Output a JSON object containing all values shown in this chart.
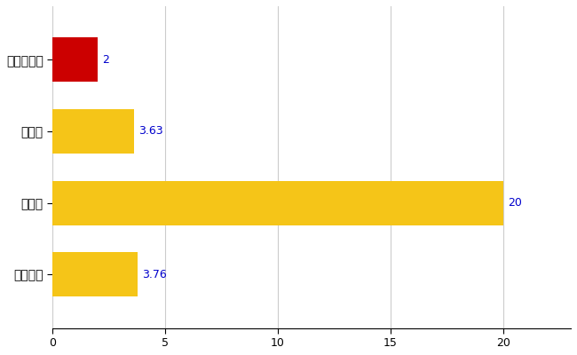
{
  "categories": [
    "みなかみ町",
    "県平均",
    "県最大",
    "全国平均"
  ],
  "values": [
    2,
    3.63,
    20,
    3.76
  ],
  "bar_colors": [
    "#cc0000",
    "#f5c518",
    "#f5c518",
    "#f5c518"
  ],
  "value_labels": [
    "2",
    "3.63",
    "20",
    "3.76"
  ],
  "xlim": [
    0,
    23
  ],
  "xticks": [
    0,
    5,
    10,
    15,
    20
  ],
  "background_color": "#ffffff",
  "grid_color": "#cccccc",
  "label_color": "#0000cc",
  "bar_height": 0.62,
  "figsize": [
    6.5,
    4.0
  ],
  "dpi": 100
}
